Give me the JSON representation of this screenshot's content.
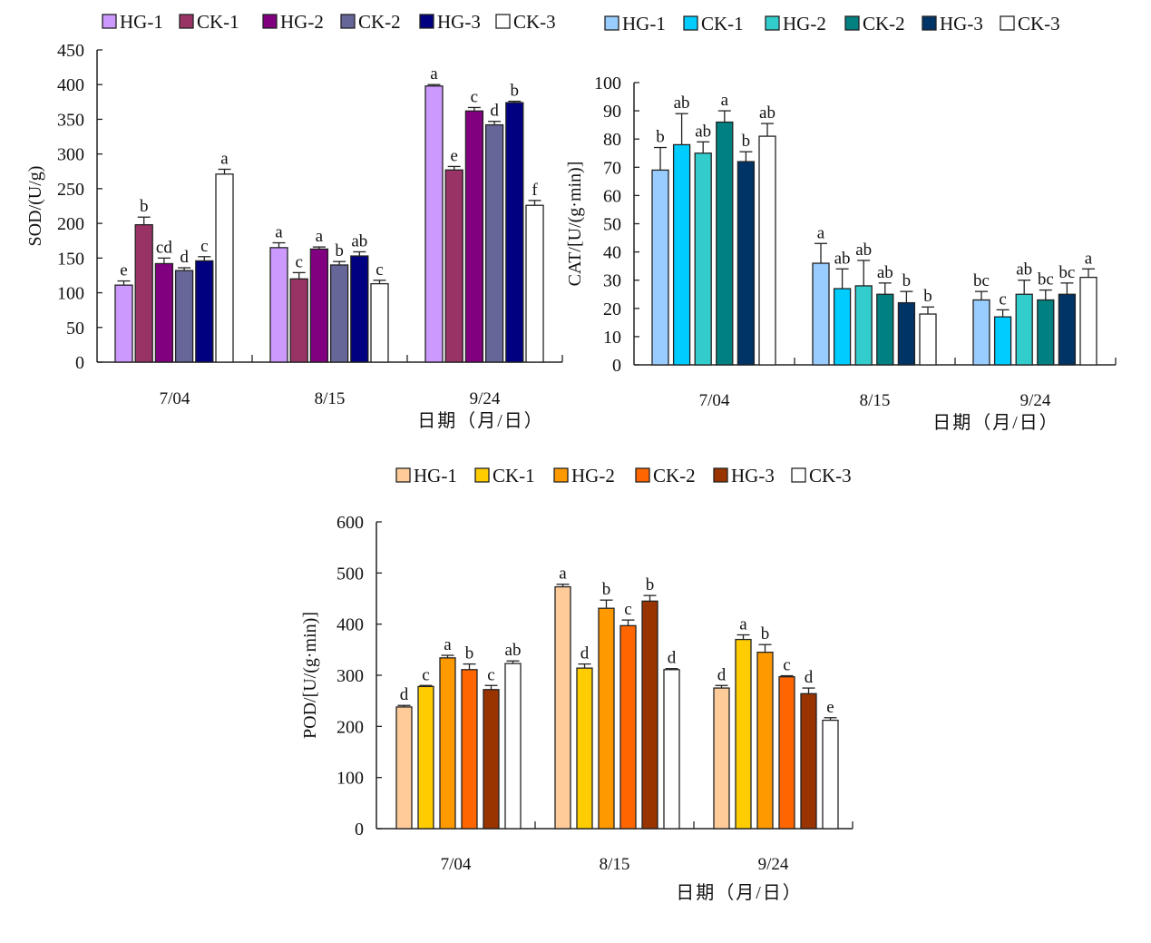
{
  "chart_data": [
    {
      "type": "bar",
      "id": "sod",
      "title": "",
      "xlabel": "日期（月/日）",
      "ylabel": "SOD/(U/g)",
      "ylim": [
        0,
        450
      ],
      "yticks": [
        0,
        50,
        100,
        150,
        200,
        250,
        300,
        350,
        400,
        450
      ],
      "categories": [
        "7/04",
        "8/15",
        "9/24"
      ],
      "legend_position": "top",
      "series": [
        {
          "name": "HG-1",
          "color": "#cc99ff",
          "values": [
            111,
            165,
            398
          ],
          "errors": [
            6,
            7,
            2
          ],
          "labels": [
            "e",
            "a",
            "a"
          ]
        },
        {
          "name": "CK-1",
          "color": "#993366",
          "values": [
            198,
            120,
            277
          ],
          "errors": [
            11,
            9,
            5
          ],
          "labels": [
            "b",
            "c",
            "e"
          ]
        },
        {
          "name": "HG-2",
          "color": "#800080",
          "values": [
            142,
            163,
            362
          ],
          "errors": [
            8,
            3,
            5
          ],
          "labels": [
            "cd",
            "a",
            "c"
          ]
        },
        {
          "name": "CK-2",
          "color": "#666699",
          "values": [
            132,
            140,
            342
          ],
          "errors": [
            4,
            5,
            5
          ],
          "labels": [
            "d",
            "b",
            "d"
          ]
        },
        {
          "name": "HG-3",
          "color": "#000080",
          "values": [
            146,
            153,
            374
          ],
          "errors": [
            6,
            6,
            2
          ],
          "labels": [
            "c",
            "ab",
            "b"
          ]
        },
        {
          "name": "CK-3",
          "color": "#ffffff",
          "values": [
            271,
            113,
            226
          ],
          "errors": [
            7,
            5,
            7
          ],
          "labels": [
            "a",
            "c",
            "f"
          ]
        }
      ]
    },
    {
      "type": "bar",
      "id": "cat",
      "title": "",
      "xlabel": "日期（月/日）",
      "ylabel": "CAT/[U/(g·min)]",
      "ylim": [
        0,
        100
      ],
      "yticks": [
        0,
        10,
        20,
        30,
        40,
        50,
        60,
        70,
        80,
        90,
        100
      ],
      "categories": [
        "7/04",
        "8/15",
        "9/24"
      ],
      "legend_position": "top",
      "series": [
        {
          "name": "HG-1",
          "color": "#99ccff",
          "values": [
            69,
            36,
            23
          ],
          "errors": [
            8,
            7,
            3
          ],
          "labels": [
            "b",
            "a",
            "bc"
          ]
        },
        {
          "name": "CK-1",
          "color": "#00ccff",
          "values": [
            78,
            27,
            17
          ],
          "errors": [
            11,
            7,
            2.5
          ],
          "labels": [
            "ab",
            "ab",
            "c"
          ]
        },
        {
          "name": "HG-2",
          "color": "#33cccc",
          "values": [
            75,
            28,
            25
          ],
          "errors": [
            4,
            9,
            5
          ],
          "labels": [
            "ab",
            "ab",
            "ab"
          ]
        },
        {
          "name": "CK-2",
          "color": "#008080",
          "values": [
            86,
            25,
            23
          ],
          "errors": [
            4,
            4,
            3.5
          ],
          "labels": [
            "a",
            "ab",
            "bc"
          ]
        },
        {
          "name": "HG-3",
          "color": "#003366",
          "values": [
            72,
            22,
            25
          ],
          "errors": [
            3.5,
            4,
            4
          ],
          "labels": [
            "b",
            "b",
            "bc"
          ]
        },
        {
          "name": "CK-3",
          "color": "#ffffff",
          "values": [
            81,
            18,
            31
          ],
          "errors": [
            4.5,
            2.5,
            3
          ],
          "labels": [
            "ab",
            "b",
            "a"
          ]
        }
      ]
    },
    {
      "type": "bar",
      "id": "pod",
      "title": "",
      "xlabel": "日期（月/日）",
      "ylabel": "POD/[U/(g·min)]",
      "ylim": [
        0,
        600
      ],
      "yticks": [
        0,
        100,
        200,
        300,
        400,
        500,
        600
      ],
      "categories": [
        "7/04",
        "8/15",
        "9/24"
      ],
      "legend_position": "top",
      "series": [
        {
          "name": "HG-1",
          "color": "#ffcc99",
          "values": [
            238,
            473,
            275
          ],
          "errors": [
            3,
            5,
            5
          ],
          "labels": [
            "d",
            "a",
            "d"
          ]
        },
        {
          "name": "CK-1",
          "color": "#ffcc00",
          "values": [
            278,
            314,
            370
          ],
          "errors": [
            2,
            8,
            9
          ],
          "labels": [
            "c",
            "d",
            "a"
          ]
        },
        {
          "name": "HG-2",
          "color": "#ff9900",
          "values": [
            334,
            431,
            345
          ],
          "errors": [
            5,
            16,
            15
          ],
          "labels": [
            "a",
            "b",
            "b"
          ]
        },
        {
          "name": "CK-2",
          "color": "#ff6600",
          "values": [
            311,
            397,
            297
          ],
          "errors": [
            11,
            11,
            2
          ],
          "labels": [
            "b",
            "c",
            "c"
          ]
        },
        {
          "name": "HG-3",
          "color": "#993300",
          "values": [
            272,
            445,
            264
          ],
          "errors": [
            8,
            11,
            11
          ],
          "labels": [
            "c",
            "b",
            "d"
          ]
        },
        {
          "name": "CK-3",
          "color": "#ffffff",
          "values": [
            323,
            311,
            212
          ],
          "errors": [
            5,
            2,
            5
          ],
          "labels": [
            "ab",
            "d",
            "e"
          ]
        }
      ]
    }
  ]
}
